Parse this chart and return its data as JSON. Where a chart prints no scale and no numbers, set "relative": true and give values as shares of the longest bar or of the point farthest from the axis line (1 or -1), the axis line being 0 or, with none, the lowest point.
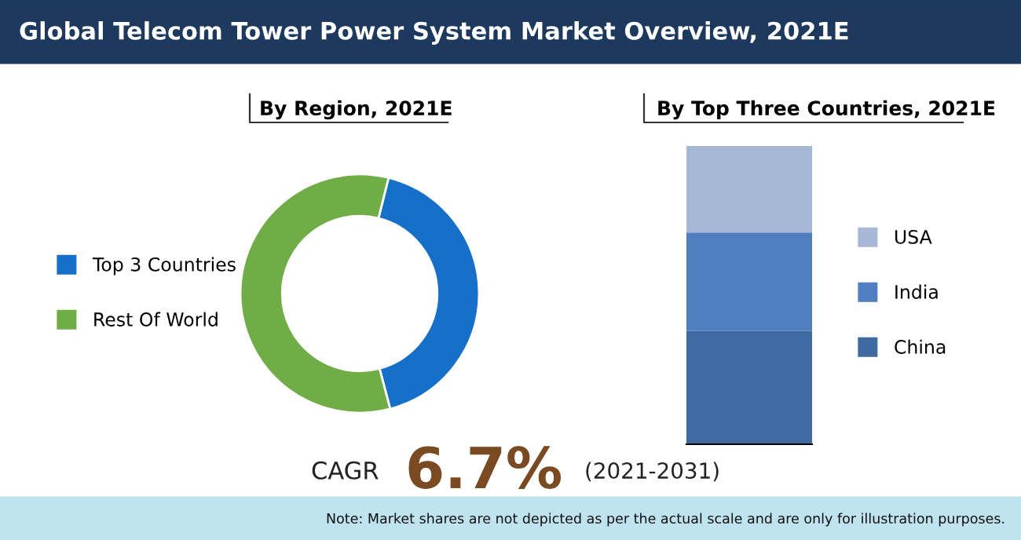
{
  "chart_data": [
    {
      "type": "donut",
      "title": "Global Telecom Tower Power System Market Overview, 2021E",
      "subtitle": "By Region, 2021E",
      "categories": [
        "Top 3 Countries",
        "Rest Of World"
      ],
      "values": [
        42,
        58
      ],
      "colors": [
        "#1670c9",
        "#70ad47"
      ],
      "legend": "left",
      "annotations": [
        "CAGR",
        "6.7%",
        "(2021-2031)"
      ]
    },
    {
      "type": "bar",
      "title": "By Top Three Countries, 2021E",
      "relative": true,
      "stacked": true,
      "categories": [
        null
      ],
      "legend": "right",
      "series": [
        {
          "name": "China",
          "color": "#3f6aa1",
          "values": [
            0.38
          ]
        },
        {
          "name": "India",
          "color": "#4f7fbf",
          "values": [
            0.33
          ]
        },
        {
          "name": "USA",
          "color": "#a7b7d6",
          "values": [
            0.29
          ]
        }
      ],
      "annotations": [
        "Note: Market shares are not depicted as per the actual scale and are only for illustration purposes."
      ]
    }
  ]
}
